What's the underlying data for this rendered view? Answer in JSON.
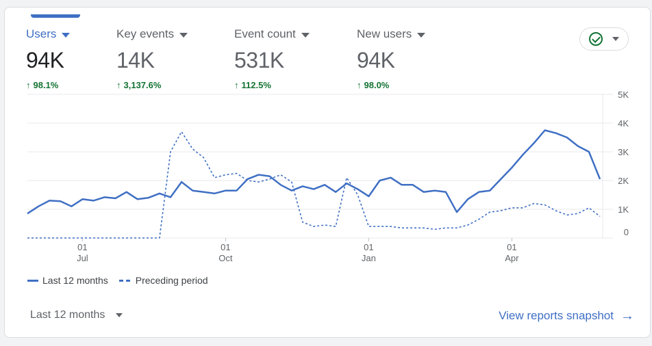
{
  "metrics": [
    {
      "label": "Users",
      "value": "94K",
      "change": "98.1%",
      "active": true
    },
    {
      "label": "Key events",
      "value": "14K",
      "change": "3,137.6%",
      "active": false
    },
    {
      "label": "Event count",
      "value": "531K",
      "change": "112.5%",
      "active": false
    },
    {
      "label": "New users",
      "value": "94K",
      "change": "98.0%",
      "active": false
    }
  ],
  "status": {
    "icon": "check-circle-icon"
  },
  "legend": {
    "current": "Last 12 months",
    "preceding": "Preceding period"
  },
  "footer": {
    "period": "Last 12 months",
    "snapshot": "View reports snapshot"
  },
  "colors": {
    "accent": "#3f6fc4",
    "positive": "#137333"
  },
  "chart_data": {
    "type": "line",
    "ylim": [
      0,
      5000
    ],
    "y_ticks": [
      "0",
      "1K",
      "2K",
      "3K",
      "4K",
      "5K"
    ],
    "x_ticks": [
      {
        "day": "01",
        "month": "Jul",
        "index": 5
      },
      {
        "day": "01",
        "month": "Oct",
        "index": 18
      },
      {
        "day": "01",
        "month": "Jan",
        "index": 31
      },
      {
        "day": "01",
        "month": "Apr",
        "index": 44
      }
    ],
    "series": [
      {
        "name": "Last 12 months",
        "style": "solid",
        "values": [
          850,
          1100,
          1300,
          1280,
          1100,
          1350,
          1300,
          1420,
          1380,
          1600,
          1350,
          1400,
          1550,
          1420,
          1950,
          1650,
          1600,
          1550,
          1650,
          1650,
          2050,
          2200,
          2150,
          1850,
          1650,
          1800,
          1700,
          1850,
          1600,
          1900,
          1700,
          1450,
          2000,
          2100,
          1850,
          1850,
          1600,
          1650,
          1600,
          900,
          1350,
          1600,
          1650,
          2050,
          2450,
          2900,
          3300,
          3750,
          3650,
          3500,
          3200,
          3000,
          2050
        ]
      },
      {
        "name": "Preceding period",
        "style": "dashed",
        "values": [
          0,
          0,
          0,
          0,
          0,
          0,
          0,
          0,
          0,
          0,
          0,
          0,
          0,
          3000,
          3700,
          3100,
          2800,
          2100,
          2200,
          2250,
          2000,
          1950,
          2050,
          2200,
          1950,
          550,
          400,
          450,
          400,
          2100,
          1500,
          400,
          400,
          400,
          350,
          350,
          350,
          300,
          350,
          350,
          450,
          650,
          900,
          950,
          1050,
          1050,
          1200,
          1150,
          950,
          800,
          850,
          1050,
          750
        ]
      }
    ]
  }
}
